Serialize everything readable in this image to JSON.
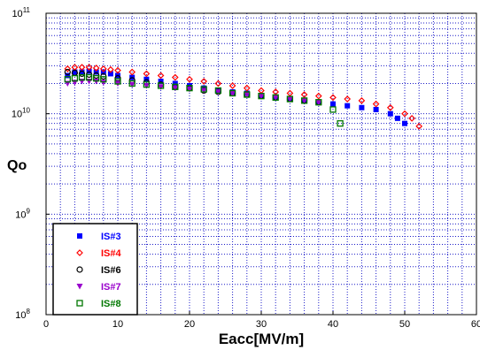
{
  "chart_data": {
    "type": "scatter",
    "xlabel": "Eacc[MV/m]",
    "ylabel": "Qo",
    "xlim": [
      0,
      60
    ],
    "ylim": [
      100000000,
      100000000000
    ],
    "yscale": "log",
    "grid": true,
    "legend_position": "bottom-left",
    "x_ticks": [
      "0",
      "10",
      "20",
      "30",
      "40",
      "50",
      "60"
    ],
    "y_ticks": [
      {
        "base": "10",
        "exp": "8",
        "value": 100000000
      },
      {
        "base": "10",
        "exp": "9",
        "value": 1000000000
      },
      {
        "base": "10",
        "exp": "10",
        "value": 10000000000
      },
      {
        "base": "10",
        "exp": "11",
        "value": 100000000000
      }
    ],
    "series": [
      {
        "name": "IS#3",
        "color": "#0000ff",
        "marker": "square",
        "points": [
          [
            3,
            24000000000.0
          ],
          [
            4,
            26000000000.0
          ],
          [
            5,
            26000000000.0
          ],
          [
            6,
            26500000000.0
          ],
          [
            7,
            26000000000.0
          ],
          [
            8,
            26000000000.0
          ],
          [
            9,
            25000000000.0
          ],
          [
            10,
            24000000000.0
          ],
          [
            12,
            23000000000.0
          ],
          [
            14,
            22000000000.0
          ],
          [
            16,
            21000000000.0
          ],
          [
            18,
            20000000000.0
          ],
          [
            20,
            19000000000.0
          ],
          [
            22,
            18000000000.0
          ],
          [
            24,
            17000000000.0
          ],
          [
            26,
            16500000000.0
          ],
          [
            28,
            16000000000.0
          ],
          [
            30,
            15000000000.0
          ],
          [
            32,
            14500000000.0
          ],
          [
            34,
            14000000000.0
          ],
          [
            36,
            13500000000.0
          ],
          [
            38,
            13000000000.0
          ],
          [
            40,
            12500000000.0
          ],
          [
            42,
            12000000000.0
          ],
          [
            44,
            11500000000.0
          ],
          [
            46,
            11000000000.0
          ],
          [
            48,
            10000000000.0
          ],
          [
            49,
            9000000000.0
          ],
          [
            50,
            8000000000.0
          ]
        ]
      },
      {
        "name": "IS#4",
        "color": "#ff0000",
        "marker": "diamond",
        "points": [
          [
            3,
            28000000000.0
          ],
          [
            4,
            29000000000.0
          ],
          [
            5,
            29000000000.0
          ],
          [
            6,
            29000000000.0
          ],
          [
            7,
            28500000000.0
          ],
          [
            8,
            28000000000.0
          ],
          [
            9,
            27500000000.0
          ],
          [
            10,
            27000000000.0
          ],
          [
            12,
            26000000000.0
          ],
          [
            14,
            25000000000.0
          ],
          [
            16,
            24000000000.0
          ],
          [
            18,
            23000000000.0
          ],
          [
            20,
            22000000000.0
          ],
          [
            22,
            21000000000.0
          ],
          [
            24,
            20000000000.0
          ],
          [
            26,
            19000000000.0
          ],
          [
            28,
            18000000000.0
          ],
          [
            30,
            17000000000.0
          ],
          [
            32,
            16500000000.0
          ],
          [
            34,
            16000000000.0
          ],
          [
            36,
            15500000000.0
          ],
          [
            38,
            15000000000.0
          ],
          [
            40,
            14500000000.0
          ],
          [
            42,
            14000000000.0
          ],
          [
            44,
            13500000000.0
          ],
          [
            46,
            12500000000.0
          ],
          [
            48,
            11500000000.0
          ],
          [
            50,
            10000000000.0
          ],
          [
            51,
            9000000000.0
          ],
          [
            52,
            7500000000.0
          ]
        ]
      },
      {
        "name": "IS#6",
        "color": "#000000",
        "marker": "circle",
        "points": [
          [
            3,
            26000000000.0
          ],
          [
            4,
            25500000000.0
          ],
          [
            5,
            25000000000.0
          ],
          [
            6,
            24500000000.0
          ],
          [
            7,
            24000000000.0
          ],
          [
            8,
            23500000000.0
          ],
          [
            10,
            22500000000.0
          ],
          [
            12,
            21500000000.0
          ],
          [
            14,
            20500000000.0
          ],
          [
            16,
            19500000000.0
          ],
          [
            18,
            18500000000.0
          ],
          [
            20,
            18000000000.0
          ],
          [
            22,
            17000000000.0
          ],
          [
            24,
            16500000000.0
          ],
          [
            26,
            16000000000.0
          ],
          [
            28,
            15500000000.0
          ],
          [
            30,
            15000000000.0
          ],
          [
            32,
            14500000000.0
          ],
          [
            34,
            14000000000.0
          ],
          [
            36,
            13500000000.0
          ],
          [
            38,
            13000000000.0
          ]
        ]
      },
      {
        "name": "IS#7",
        "color": "#9900cc",
        "marker": "triangle-down",
        "points": [
          [
            3,
            20000000000.0
          ],
          [
            4,
            20500000000.0
          ],
          [
            5,
            21000000000.0
          ],
          [
            6,
            21000000000.0
          ],
          [
            7,
            21000000000.0
          ],
          [
            8,
            20500000000.0
          ],
          [
            10,
            20000000000.0
          ],
          [
            12,
            19500000000.0
          ],
          [
            14,
            19000000000.0
          ],
          [
            16,
            18500000000.0
          ],
          [
            18,
            18000000000.0
          ],
          [
            20,
            17500000000.0
          ],
          [
            22,
            17000000000.0
          ],
          [
            24,
            16500000000.0
          ],
          [
            26,
            16000000000.0
          ],
          [
            28,
            15500000000.0
          ],
          [
            30,
            15000000000.0
          ],
          [
            32,
            14500000000.0
          ],
          [
            34,
            14000000000.0
          ],
          [
            36,
            13500000000.0
          ],
          [
            38,
            13000000000.0
          ]
        ]
      },
      {
        "name": "IS#8",
        "color": "#007700",
        "marker": "square-open",
        "points": [
          [
            3,
            22000000000.0
          ],
          [
            4,
            22500000000.0
          ],
          [
            5,
            23000000000.0
          ],
          [
            6,
            23000000000.0
          ],
          [
            7,
            22500000000.0
          ],
          [
            8,
            22000000000.0
          ],
          [
            10,
            21000000000.0
          ],
          [
            12,
            20000000000.0
          ],
          [
            14,
            19500000000.0
          ],
          [
            16,
            19000000000.0
          ],
          [
            18,
            18500000000.0
          ],
          [
            20,
            18000000000.0
          ],
          [
            22,
            17500000000.0
          ],
          [
            24,
            17000000000.0
          ],
          [
            26,
            16000000000.0
          ],
          [
            28,
            15500000000.0
          ],
          [
            30,
            15000000000.0
          ],
          [
            32,
            14500000000.0
          ],
          [
            34,
            14000000000.0
          ],
          [
            36,
            13500000000.0
          ],
          [
            38,
            13000000000.0
          ],
          [
            40,
            11000000000.0
          ],
          [
            41,
            8000000000.0
          ]
        ]
      }
    ]
  }
}
